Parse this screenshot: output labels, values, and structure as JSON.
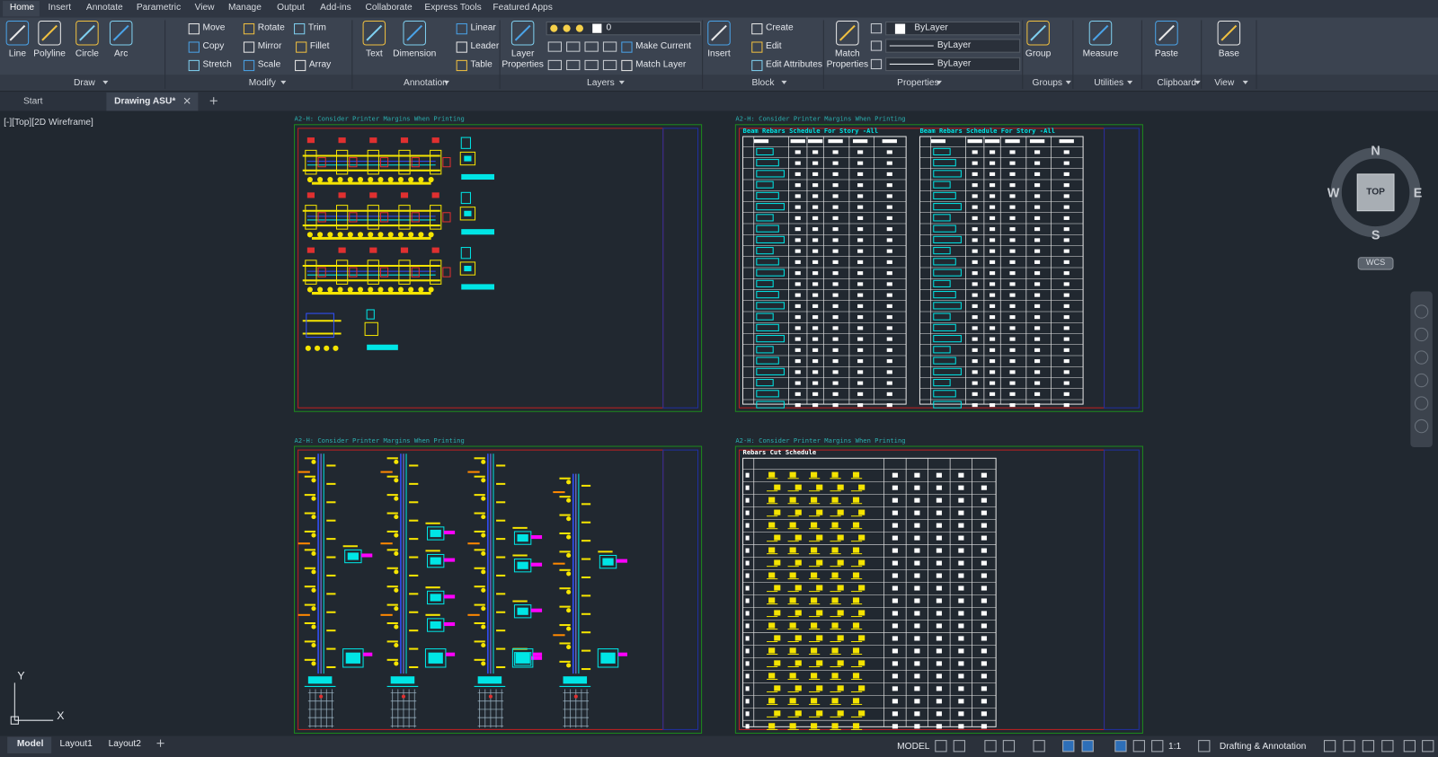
{
  "ribbon_tabs": [
    "Home",
    "Insert",
    "Annotate",
    "Parametric",
    "View",
    "Manage",
    "Output",
    "Add-ins",
    "Collaborate",
    "Express Tools",
    "Featured Apps"
  ],
  "panels": [
    {
      "label": "Draw",
      "buttons": [
        "Line",
        "Polyline",
        "Circle",
        "Arc"
      ]
    },
    {
      "label": "Modify",
      "buttons": [
        "Move",
        "Rotate",
        "Trim",
        "Copy",
        "Mirror",
        "Fillet",
        "Stretch",
        "Scale",
        "Array"
      ]
    },
    {
      "label": "Annotation",
      "buttons": [
        "Text",
        "Dimension",
        "Linear",
        "Leader",
        "Table"
      ]
    },
    {
      "label": "Layers",
      "buttons": [
        "Layer Properties",
        "Make Current",
        "Match Layer"
      ],
      "current_layer": "0"
    },
    {
      "label": "Block",
      "buttons": [
        "Insert",
        "Create",
        "Edit",
        "Edit Attributes"
      ]
    },
    {
      "label": "Properties",
      "buttons": [
        "Match Properties"
      ],
      "dropdowns": [
        "ByLayer",
        "ByLayer",
        "ByLayer"
      ]
    },
    {
      "label": "Groups",
      "buttons": [
        "Group"
      ]
    },
    {
      "label": "Utilities",
      "buttons": [
        "Measure"
      ]
    },
    {
      "label": "Clipboard",
      "buttons": [
        "Paste"
      ]
    },
    {
      "label": "View",
      "buttons": [
        "Base"
      ]
    }
  ],
  "file_tabs": [
    "Start",
    "Drawing ASU*"
  ],
  "viewport_label": "[-][Top][2D Wireframe]",
  "sheets": [
    {
      "note": "A2-H: Consider Printer Margins When Printing"
    },
    {
      "note": "A2-H: Consider Printer Margins When Printing"
    },
    {
      "note": "A2-H: Consider Printer Margins When Printing"
    },
    {
      "note": "A2-H: Consider Printer Margins When Printing"
    }
  ],
  "schedule_titles": [
    "Beam Rebars Schedule For Story -All",
    "Beam Rebars Schedule For Story -All",
    "Rebars Cut Schedule"
  ],
  "viewcube": {
    "north": "N",
    "south": "S",
    "east": "E",
    "west": "W",
    "face": "TOP",
    "wcs": "WCS"
  },
  "ucs": {
    "x": "X",
    "y": "Y"
  },
  "layout_tabs": [
    "Model",
    "Layout1",
    "Layout2"
  ],
  "status": {
    "model": "MODEL",
    "scale": "1:1",
    "workspace": "Drafting & Annotation"
  }
}
